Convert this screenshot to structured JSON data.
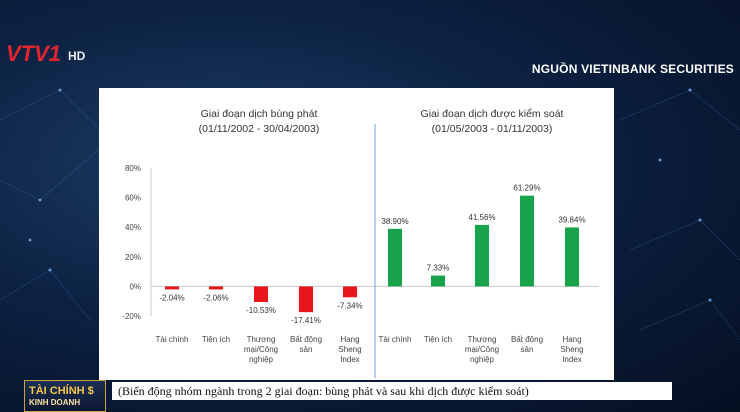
{
  "broadcast": {
    "logo_text": "VTV1",
    "logo_suffix": "HD",
    "source_label": "NGUỒN VIETINBANK SECURITIES",
    "show_logo": "TÀI CHÍNH $",
    "show_logo_sub": "KINH DOANH",
    "caption": "(Biến động nhóm ngành trong 2 giai đoạn: bùng phát và sau khi dịch được kiểm soát)"
  },
  "colors": {
    "negative": "#e8161b",
    "positive": "#16a34a",
    "divider": "#6f9fd8"
  },
  "chart_data": [
    {
      "type": "bar",
      "title": "Giai đoạn dịch bùng phát",
      "subtitle": "(01/11/2002 - 30/04/2003)",
      "categories": [
        "Tài chính",
        "Tiện ích",
        "Thương mại/Công nghiệp",
        "Bất động sản",
        "Hang Sheng Index"
      ],
      "category_lines": [
        [
          "Tài chính"
        ],
        [
          "Tiện ích"
        ],
        [
          "Thương",
          "mại/Công",
          "nghiệp"
        ],
        [
          "Bất động",
          "sản"
        ],
        [
          "Hang",
          "Sheng",
          "Index"
        ]
      ],
      "values": [
        -2.04,
        -2.06,
        -10.53,
        -17.41,
        -7.34
      ],
      "data_labels": [
        "-2.04%",
        "-2.06%",
        "-10.53%",
        "-17.41%",
        "-7.34%"
      ],
      "ylim": [
        -20,
        80
      ],
      "yticks": [
        -20,
        0,
        20,
        40,
        60,
        80
      ],
      "ytick_labels": [
        "-20%",
        "0%",
        "20%",
        "40%",
        "60%",
        "80%"
      ],
      "color": "#e8161b",
      "grid": false
    },
    {
      "type": "bar",
      "title": "Giai đoạn dịch được kiểm soát",
      "subtitle": "(01/05/2003 - 01/11/2003)",
      "categories": [
        "Tài chính",
        "Tiện ích",
        "Thương mại/Công nghiệp",
        "Bất động sản",
        "Hang Sheng Index"
      ],
      "category_lines": [
        [
          "Tài chính"
        ],
        [
          "Tiện ích"
        ],
        [
          "Thương",
          "mại/Công",
          "nghiệp"
        ],
        [
          "Bất động",
          "sản"
        ],
        [
          "Hang",
          "Sheng",
          "Index"
        ]
      ],
      "values": [
        38.9,
        7.33,
        41.56,
        61.29,
        39.84
      ],
      "data_labels": [
        "38.90%",
        "7.33%",
        "41.56%",
        "61.29%",
        "39.84%"
      ],
      "ylim": [
        -20,
        80
      ],
      "color": "#16a34a",
      "grid": false
    }
  ]
}
